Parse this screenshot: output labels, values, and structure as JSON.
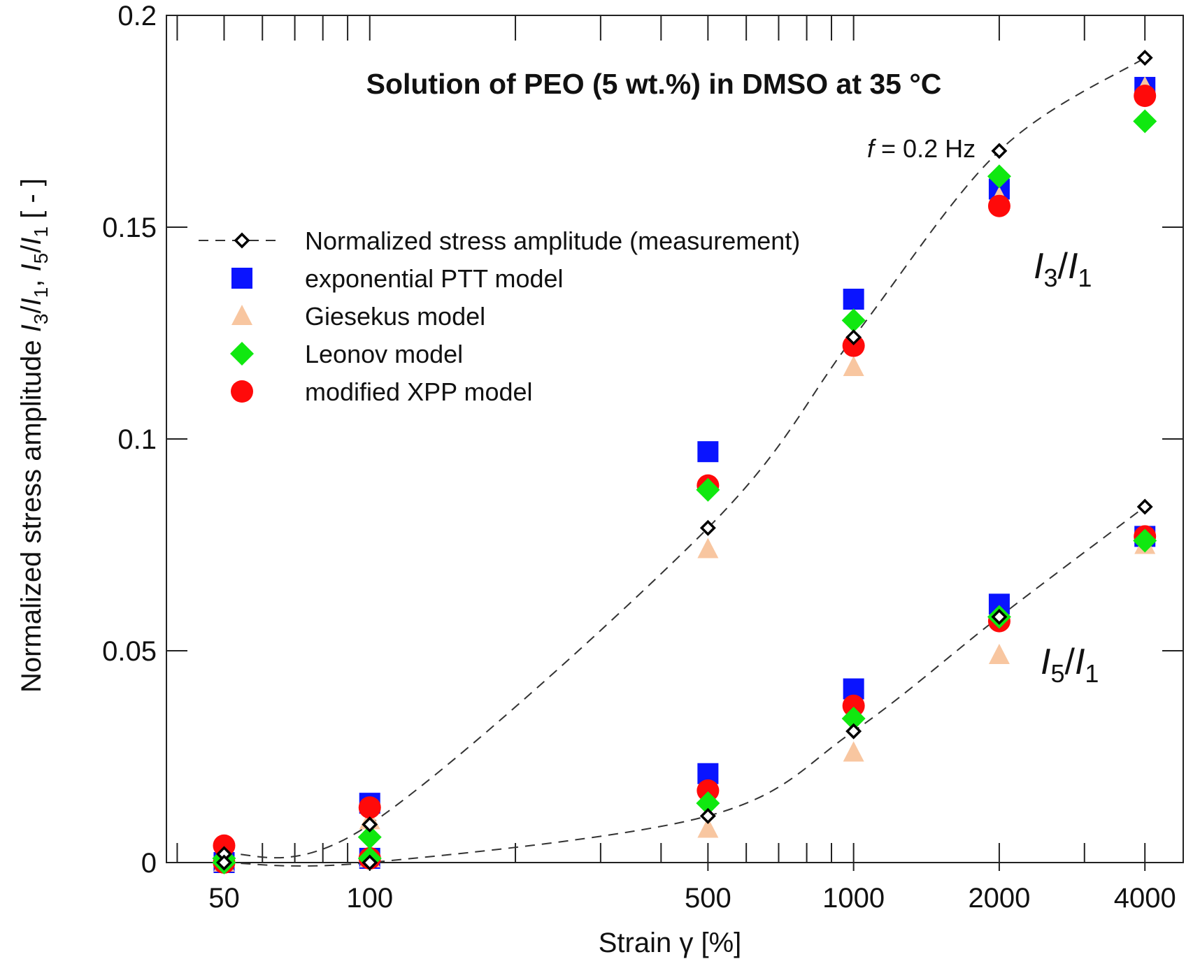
{
  "chart_data": {
    "type": "scatter",
    "title": "Solution of PEO (5 wt.%) in DMSO at 35 °C",
    "xlabel": "Strain γ [%]",
    "ylabel": "Normalized stress amplitude I3/I1, I5/I1 [ - ]",
    "ylabel_parts": [
      "Normalized stress amplitude ",
      "I",
      "3",
      "/",
      "I",
      "1",
      ", ",
      "I",
      "5",
      "/",
      "I",
      "1",
      " [ - ]"
    ],
    "xscale": "log",
    "xlim": [
      38,
      4800
    ],
    "ylim": [
      0,
      0.2
    ],
    "x_ticks": [
      50,
      100,
      500,
      1000,
      2000,
      4000
    ],
    "x_tick_labels": [
      "50",
      "100",
      "500",
      "1000",
      "2000",
      "4000"
    ],
    "y_ticks": [
      0,
      0.05,
      0.1,
      0.15,
      0.2
    ],
    "y_tick_labels": [
      "0",
      "0.05",
      "0.1",
      "0.15",
      "0.2"
    ],
    "annotation_frequency": {
      "italic": "f",
      "rest": " = 0.2 Hz"
    },
    "annotation_i3": {
      "a": "I",
      "sub": "3",
      "slash": "/",
      "b": "I",
      "sub2": "1"
    },
    "annotation_i5": {
      "a": "I",
      "sub": "5",
      "slash": "/",
      "b": "I",
      "sub2": "1"
    },
    "legend_position": "upper-left",
    "x": [
      50,
      100,
      500,
      1000,
      2000,
      4000
    ],
    "series": [
      {
        "name": "Normalized stress amplitude (measurement)",
        "marker": "open-diamond",
        "color": "#000000",
        "line": "dashed",
        "i3": [
          0.002,
          0.009,
          0.079,
          0.124,
          0.168,
          0.19
        ],
        "i5": [
          0.0,
          0.0,
          0.011,
          0.031,
          0.058,
          0.084
        ]
      },
      {
        "name": "exponential PTT model",
        "marker": "square",
        "color": "#0a14ff",
        "i3": [
          0.0,
          0.014,
          0.097,
          0.133,
          0.159,
          0.183
        ],
        "i5": [
          0.0,
          0.001,
          0.021,
          0.041,
          0.061,
          0.077
        ]
      },
      {
        "name": "Giesekus model",
        "marker": "triangle",
        "color": "#f8c6a0",
        "i3": [
          0.003,
          0.01,
          0.074,
          0.117,
          0.157,
          0.183
        ],
        "i5": [
          0.0,
          0.001,
          0.008,
          0.026,
          0.049,
          0.075
        ]
      },
      {
        "name": "Leonov model",
        "marker": "diamond",
        "color": "#10e810",
        "i3": [
          0.001,
          0.006,
          0.088,
          0.128,
          0.162,
          0.175
        ],
        "i5": [
          0.0,
          0.001,
          0.014,
          0.034,
          0.058,
          0.076
        ]
      },
      {
        "name": "modified XPP model",
        "marker": "circle",
        "color": "#ff0a0a",
        "i3": [
          0.004,
          0.013,
          0.089,
          0.122,
          0.155,
          0.181
        ],
        "i5": [
          0.0,
          0.001,
          0.017,
          0.037,
          0.057,
          0.077
        ]
      }
    ]
  }
}
